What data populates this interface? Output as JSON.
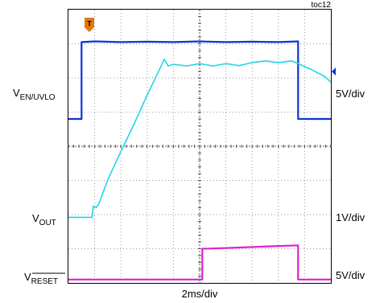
{
  "chart_data": {
    "type": "line",
    "id_label": "toc12",
    "xlabel": "2ms/div",
    "x_unit": "ms",
    "x_divisions": 10,
    "y_divisions": 8,
    "x_range_ms": [
      0,
      20
    ],
    "channel_labels": [
      {
        "main": "V",
        "sub": "EN/UVLO",
        "overline": false,
        "scale": "5V/div"
      },
      {
        "main": "V",
        "sub": "OUT",
        "overline": false,
        "scale": "1V/div"
      },
      {
        "main": "V",
        "sub": "RESET",
        "overline": true,
        "scale": "5V/div"
      }
    ],
    "series": [
      {
        "color": "#0a35d6",
        "x": [
          0,
          1.0,
          1.0,
          1.0,
          2.0,
          4.0,
          6.0,
          8.0,
          10.0,
          12.0,
          14.0,
          16.0,
          17.5,
          17.5,
          17.5,
          20.0
        ],
        "y_div": [
          4.8,
          4.8,
          6.05,
          7.05,
          7.07,
          7.05,
          7.06,
          7.05,
          7.07,
          7.05,
          7.06,
          7.05,
          7.07,
          6.05,
          4.8,
          4.8
        ]
      },
      {
        "color": "#1fd6e8",
        "x": [
          0,
          1.0,
          1.8,
          1.9,
          2.1,
          2.3,
          3.0,
          4.0,
          5.0,
          6.0,
          7.0,
          7.3,
          7.6,
          8.0,
          9.0,
          10.0,
          11.0,
          12.0,
          13.0,
          14.0,
          15.0,
          16.0,
          17.0,
          17.5,
          18.5,
          19.5,
          20.0
        ],
        "y_div": [
          1.92,
          1.92,
          1.92,
          2.25,
          2.2,
          2.3,
          3.02,
          3.85,
          4.65,
          5.5,
          6.3,
          6.55,
          6.35,
          6.4,
          6.35,
          6.42,
          6.35,
          6.42,
          6.36,
          6.45,
          6.5,
          6.45,
          6.5,
          6.42,
          6.25,
          6.05,
          5.88
        ]
      },
      {
        "color": "#e020d0",
        "x": [
          0,
          5.0,
          10.2,
          10.2,
          10.2,
          12.0,
          14.0,
          16.0,
          17.5,
          17.5,
          17.5,
          20.0
        ],
        "y_div": [
          0.1,
          0.1,
          0.1,
          0.75,
          1.0,
          1.02,
          1.05,
          1.08,
          1.1,
          0.75,
          0.1,
          0.1
        ]
      }
    ],
    "trigger_marker": {
      "label": "T",
      "color": "#e07a10"
    },
    "ground_marker": {
      "color": "#0a35d6"
    }
  }
}
